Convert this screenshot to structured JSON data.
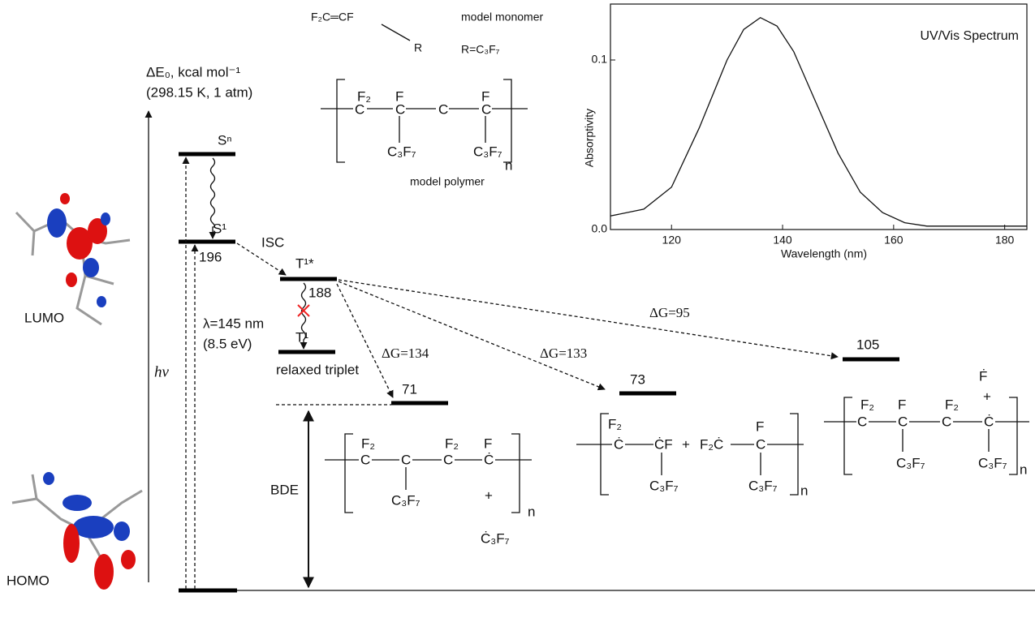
{
  "header": {
    "energy_axis": "ΔE₀, kcal mol⁻¹",
    "conditions": "(298.15 K, 1 atm)",
    "excitation": "hν"
  },
  "orbitals": {
    "lumo": "LUMO",
    "homo": "HOMO"
  },
  "monomer": {
    "formula": "F₂C═CF",
    "substituent": "R",
    "caption": "model monomer",
    "definition": "R=C₃F₇"
  },
  "polymer": {
    "atoms": [
      "F₂",
      "C",
      "F",
      "C",
      "C",
      "F",
      "C",
      "C₃F₇",
      "C₃F₇"
    ],
    "repeat": "n",
    "caption": "model polymer"
  },
  "levels": [
    {
      "state": "Sⁿ"
    },
    {
      "state": "S¹",
      "energy": 196
    },
    {
      "state": "T¹*",
      "energy": 188
    },
    {
      "state": "T¹",
      "caption": "relaxed triplet"
    }
  ],
  "transitions": {
    "isc": "ISC",
    "wavelength": "λ=145 nm",
    "photon_energy": "(8.5 eV)",
    "bde": "BDE"
  },
  "products": [
    {
      "energy": 71,
      "dg": "ΔG=134",
      "atoms": [
        "F₂",
        "C",
        "C",
        "F₂",
        "C",
        "F",
        "Ċ",
        "C₃F₇",
        "+",
        "Ċ₃F₇"
      ],
      "repeat": "n"
    },
    {
      "energy": 73,
      "dg": "ΔG=133",
      "atoms": [
        "F₂",
        "Ċ",
        "ĊF",
        "+",
        "F₂Ċ",
        "F",
        "C",
        "C₃F₇",
        "C₃F₇"
      ],
      "repeat": "n"
    },
    {
      "energy": 105,
      "dg": "ΔG=95",
      "atoms": [
        "F₂",
        "C",
        "F",
        "C",
        "F₂",
        "C",
        "Ḟ",
        "+",
        "Ċ",
        "C₃F₇",
        "C₃F₇"
      ],
      "repeat": "n"
    }
  ],
  "spectrum": {
    "type": "line",
    "title": "UV/Vis Spectrum",
    "x_label": "Wavelength (nm)",
    "y_label": "Absorptivity",
    "xlim": [
      109,
      184
    ],
    "ylim": [
      0,
      0.133
    ],
    "xticks": [
      120,
      140,
      160,
      180
    ],
    "yticks": [
      {
        "value": 0,
        "label": "0.0"
      },
      0.1
    ],
    "x": [
      109,
      115,
      120,
      125,
      130,
      133,
      136,
      139,
      142,
      146,
      150,
      154,
      158,
      162,
      166,
      170,
      184
    ],
    "values": [
      0.008,
      0.012,
      0.025,
      0.06,
      0.1,
      0.118,
      0.125,
      0.12,
      0.105,
      0.075,
      0.045,
      0.022,
      0.01,
      0.004,
      0.002,
      0.002,
      0.002
    ]
  }
}
